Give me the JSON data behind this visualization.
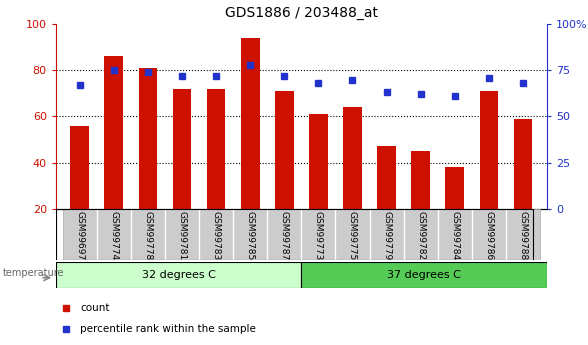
{
  "title": "GDS1886 / 203488_at",
  "samples": [
    "GSM99697",
    "GSM99774",
    "GSM99778",
    "GSM99781",
    "GSM99783",
    "GSM99785",
    "GSM99787",
    "GSM99773",
    "GSM99775",
    "GSM99779",
    "GSM99782",
    "GSM99784",
    "GSM99786",
    "GSM99788"
  ],
  "counts": [
    56,
    86,
    81,
    72,
    72,
    94,
    71,
    61,
    64,
    47,
    45,
    38,
    71,
    59
  ],
  "percentiles": [
    67,
    75,
    74,
    72,
    72,
    78,
    72,
    68,
    70,
    63,
    62,
    61,
    71,
    68
  ],
  "group1_label": "32 degrees C",
  "group2_label": "37 degrees C",
  "group1_count": 7,
  "group2_count": 7,
  "bar_color": "#cc1100",
  "percentile_color": "#2233cc",
  "group1_bg": "#ccffcc",
  "group2_bg": "#55cc55",
  "tick_bg": "#cccccc",
  "left_ylim": [
    20,
    100
  ],
  "right_ylim": [
    0,
    100
  ],
  "left_yticks": [
    20,
    40,
    60,
    80,
    100
  ],
  "right_yticks": [
    0,
    25,
    50,
    75,
    100
  ],
  "right_yticklabels": [
    "0",
    "25",
    "50",
    "75",
    "100%"
  ],
  "left_tick_color": "#cc1100",
  "right_tick_color": "#2233cc",
  "grid_lines": [
    40,
    60,
    80
  ],
  "temperature_label": "temperature"
}
